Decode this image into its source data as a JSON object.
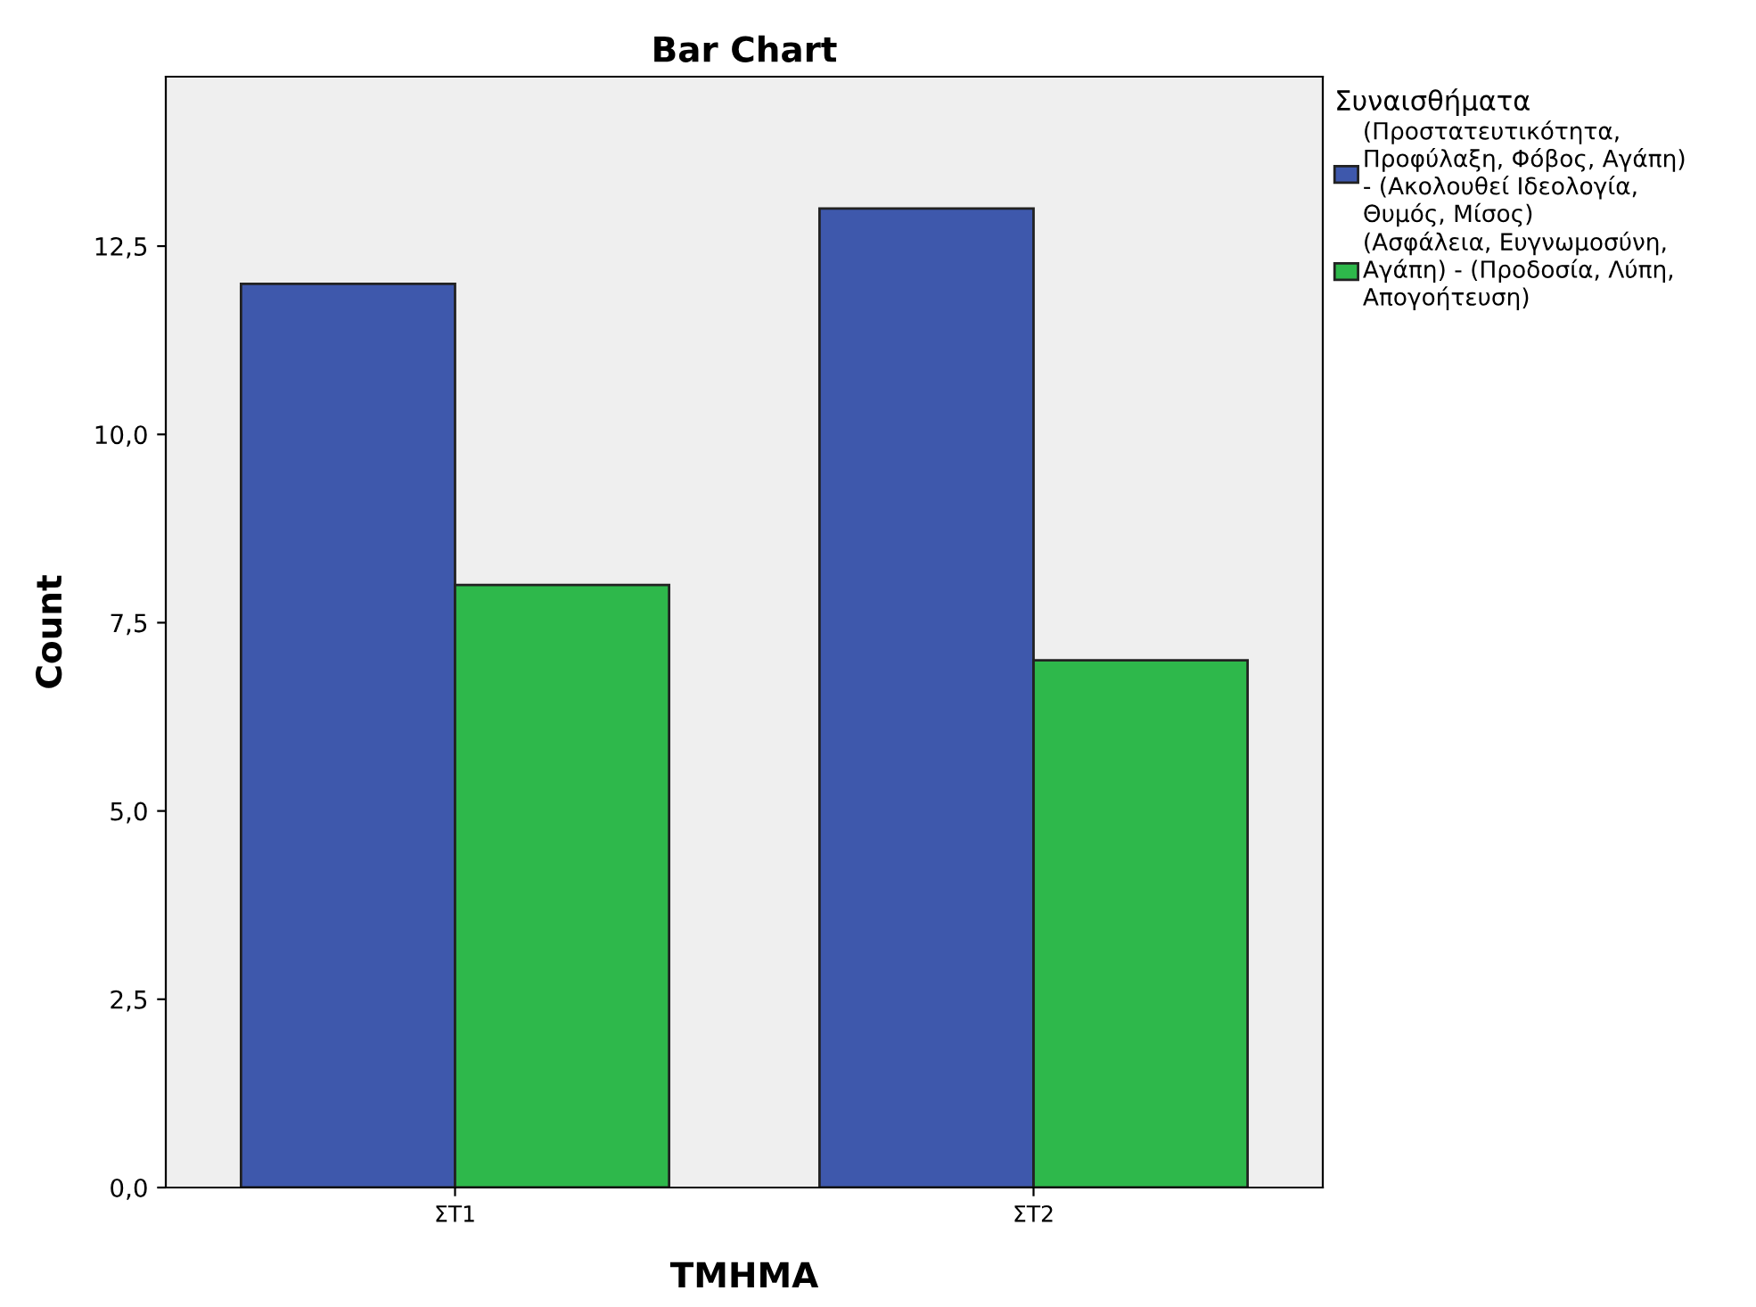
{
  "chart_data": {
    "type": "bar",
    "title": "Bar Chart",
    "xlabel": "ΤΜΗΜΑ",
    "ylabel": "Count",
    "legend_title": "Συναισθήματα",
    "categories": [
      "ΣΤ1",
      "ΣΤ2"
    ],
    "series": [
      {
        "name": "(Προστατευτικότητα,\nΠροφύλαξη, Φόβος, Αγάπη)\n- (Ακολουθεί Ιδεολογία,\nΘυμός, Μίσος)",
        "color": "#3e58ac",
        "values": [
          12,
          13
        ]
      },
      {
        "name": "(Ασφάλεια, Ευγνωμοσύνη,\nΑγάπη) - (Προδοσία, Λύπη,\nΑπογοήτευση)",
        "color": "#2eb84b",
        "values": [
          8,
          7
        ]
      }
    ],
    "ylim": [
      0,
      14.75
    ],
    "yticks": [
      {
        "value": 0,
        "label": "0,0"
      },
      {
        "value": 2.5,
        "label": "2,5"
      },
      {
        "value": 5,
        "label": "5,0"
      },
      {
        "value": 7.5,
        "label": "7,5"
      },
      {
        "value": 10,
        "label": "10,0"
      },
      {
        "value": 12.5,
        "label": "12,5"
      }
    ],
    "grid": false,
    "legend": "right"
  }
}
